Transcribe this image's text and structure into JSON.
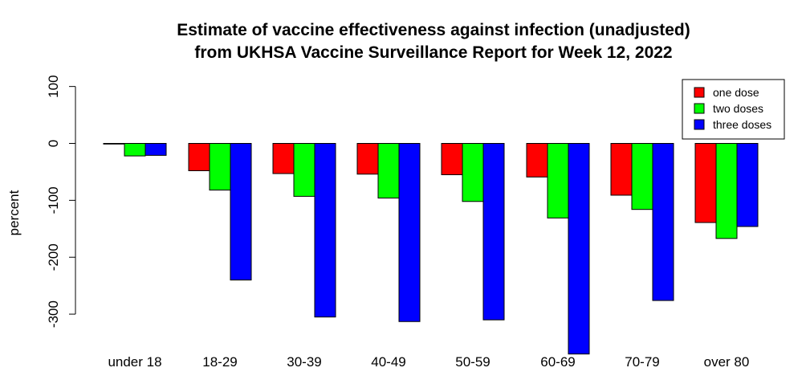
{
  "chart_data": {
    "type": "bar",
    "title": [
      "Estimate of vaccine effectiveness against infection (unadjusted)",
      "from UKHSA Vaccine Surveillance Report for Week 12, 2022"
    ],
    "xlabel": "",
    "ylabel": "percent",
    "ylim": [
      -370,
      100
    ],
    "yticks": [
      100,
      0,
      -100,
      -200,
      -300
    ],
    "categories": [
      "under 18",
      "18-29",
      "30-39",
      "40-49",
      "50-59",
      "60-69",
      "70-79",
      "over 80"
    ],
    "series": [
      {
        "name": "one dose",
        "color": "#ff0000",
        "values": [
          0,
          -48,
          -53,
          -54,
          -55,
          -59,
          -91,
          -139
        ]
      },
      {
        "name": "two doses",
        "color": "#00ff00",
        "values": [
          -22,
          -82,
          -93,
          -96,
          -102,
          -131,
          -116,
          -167
        ]
      },
      {
        "name": "three doses",
        "color": "#0000ff",
        "values": [
          -21,
          -240,
          -305,
          -313,
          -310,
          -370,
          -276,
          -146
        ]
      }
    ],
    "legend_position": "top-right",
    "grid": false
  }
}
